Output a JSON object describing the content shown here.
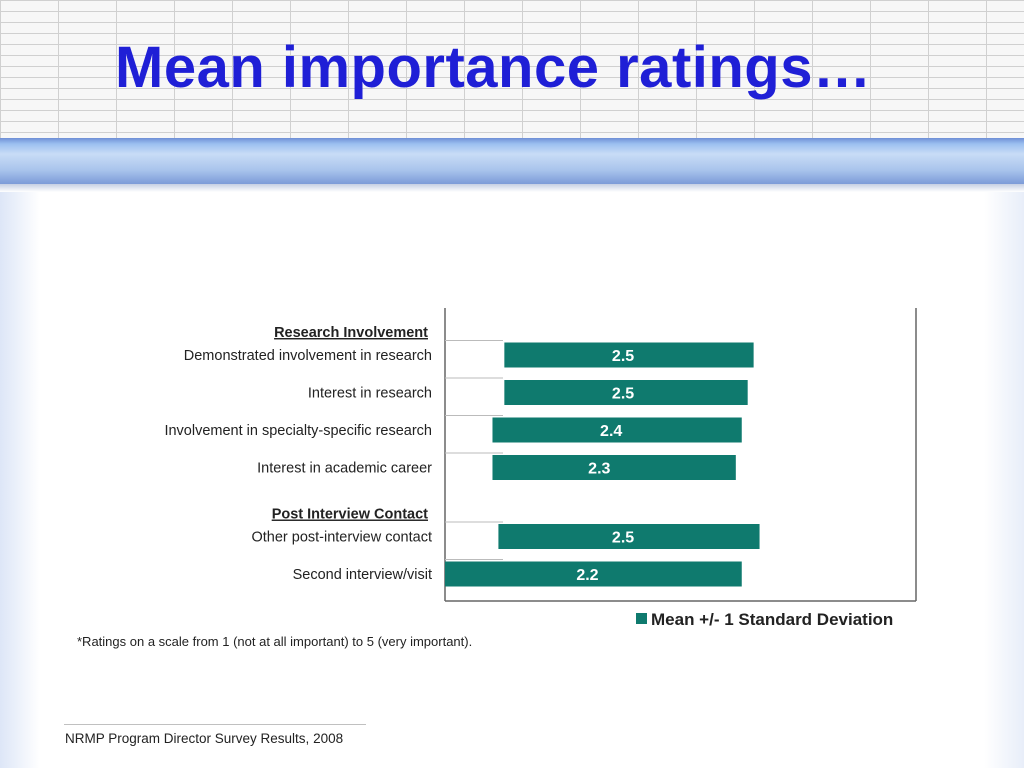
{
  "slide": {
    "title": "Mean importance ratings…",
    "footnote": "*Ratings on a scale from 1 (not at all important) to 5 (very important).",
    "source": "NRMP Program Director Survey Results, 2008"
  },
  "chart_data": {
    "type": "bar",
    "orientation": "horizontal",
    "groups": [
      {
        "label": "Research Involvement",
        "items": [
          {
            "category": "Demonstrated involvement in research",
            "mean": 2.5,
            "low": 1.5,
            "high": 3.6
          },
          {
            "category": "Interest in research",
            "mean": 2.5,
            "low": 1.5,
            "high": 3.55
          },
          {
            "category": "Involvement in specialty-specific research",
            "mean": 2.4,
            "low": 1.4,
            "high": 3.5
          },
          {
            "category": "Interest in academic career",
            "mean": 2.3,
            "low": 1.4,
            "high": 3.45
          }
        ]
      },
      {
        "label": "Post Interview Contact",
        "items": [
          {
            "category": "Other post-interview contact",
            "mean": 2.5,
            "low": 1.45,
            "high": 3.65
          },
          {
            "category": "Second interview/visit",
            "mean": 2.2,
            "low": 1.0,
            "high": 3.5
          }
        ]
      }
    ],
    "legend": [
      {
        "name": "Mean +/- 1 Standard Deviation",
        "color": "#0f7a6e"
      }
    ],
    "legend_position": "bottom-right",
    "xlim": [
      1,
      5
    ],
    "grid": false,
    "bar_color": "#0f7a6e"
  }
}
